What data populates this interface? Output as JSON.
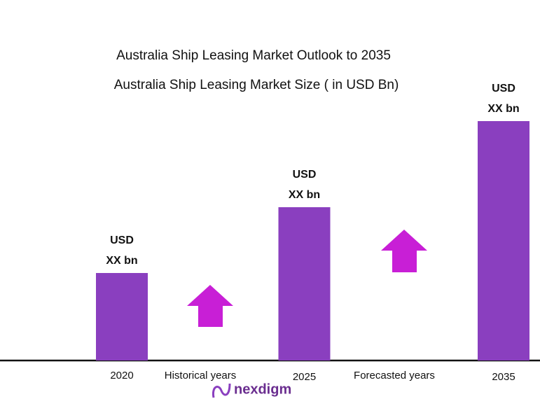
{
  "chart_data": {
    "type": "bar",
    "title": "Australia Ship Leasing Market Outlook to 2035",
    "subtitle": "Australia Ship Leasing Market Size ( in USD Bn)",
    "categories": [
      "2020",
      "2025",
      "2035"
    ],
    "values": [
      125,
      219,
      342
    ],
    "value_labels": [
      [
        "USD",
        "XX bn"
      ],
      [
        "USD",
        "XX bn"
      ],
      [
        "USD",
        "XX bn"
      ]
    ],
    "color": "#8a3fbf",
    "annotations": [
      "Historical years",
      "Forecasted years"
    ],
    "logo": "nexdigm"
  }
}
